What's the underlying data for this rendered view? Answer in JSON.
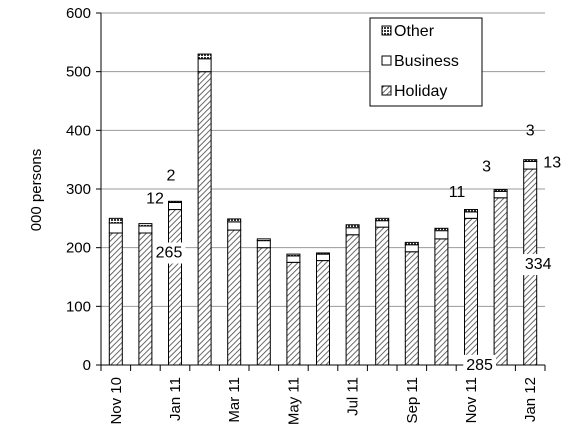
{
  "chart_data": {
    "type": "bar",
    "stacked": true,
    "ylabel": "000 persons",
    "ylim": [
      0,
      600
    ],
    "yticks": [
      0,
      100,
      200,
      300,
      400,
      500,
      600
    ],
    "grid": "horizontal",
    "legend_position": "top-right",
    "categories": [
      "Nov 10",
      "Dec 10",
      "Jan 11",
      "Feb 11",
      "Mar 11",
      "Apr 11",
      "May 11",
      "Jun 11",
      "Jul 11",
      "Aug 11",
      "Sep 11",
      "Oct 11",
      "Nov 11",
      "Dec 11",
      "Jan 12"
    ],
    "tick_labels": [
      "Nov 10",
      "",
      "Jan 11",
      "",
      "Mar 11",
      "",
      "May 11",
      "",
      "Jul 11",
      "",
      "Sep 11",
      "",
      "Nov 11",
      "",
      "Jan 12"
    ],
    "series": [
      {
        "name": "Holiday",
        "values": [
          225,
          225,
          265,
          500,
          230,
          200,
          175,
          178,
          222,
          235,
          193,
          215,
          250,
          285,
          334
        ]
      },
      {
        "name": "Business",
        "values": [
          17,
          12,
          12,
          22,
          14,
          12,
          11,
          11,
          12,
          11,
          12,
          14,
          11,
          11,
          13
        ]
      },
      {
        "name": "Other",
        "values": [
          8,
          4,
          2,
          8,
          5,
          3,
          3,
          2,
          5,
          4,
          4,
          4,
          4,
          3,
          3
        ]
      }
    ],
    "legend_order": [
      "Other",
      "Business",
      "Holiday"
    ],
    "data_labels": [
      {
        "category": "Jan 11",
        "series": "Other",
        "text": "2"
      },
      {
        "category": "Jan 11",
        "series": "Business",
        "text": "12"
      },
      {
        "category": "Jan 11",
        "series": "Holiday",
        "text": "265"
      },
      {
        "category": "Nov 11",
        "series": "Business",
        "text": "11"
      },
      {
        "category": "Dec 11",
        "series": "Other",
        "text": "3"
      },
      {
        "category": "Dec 11",
        "series": "Holiday",
        "text": "285"
      },
      {
        "category": "Jan 12",
        "series": "Other",
        "text": "3"
      },
      {
        "category": "Jan 12",
        "series": "Business",
        "text": "13"
      },
      {
        "category": "Jan 12",
        "series": "Holiday",
        "text": "334"
      }
    ]
  }
}
